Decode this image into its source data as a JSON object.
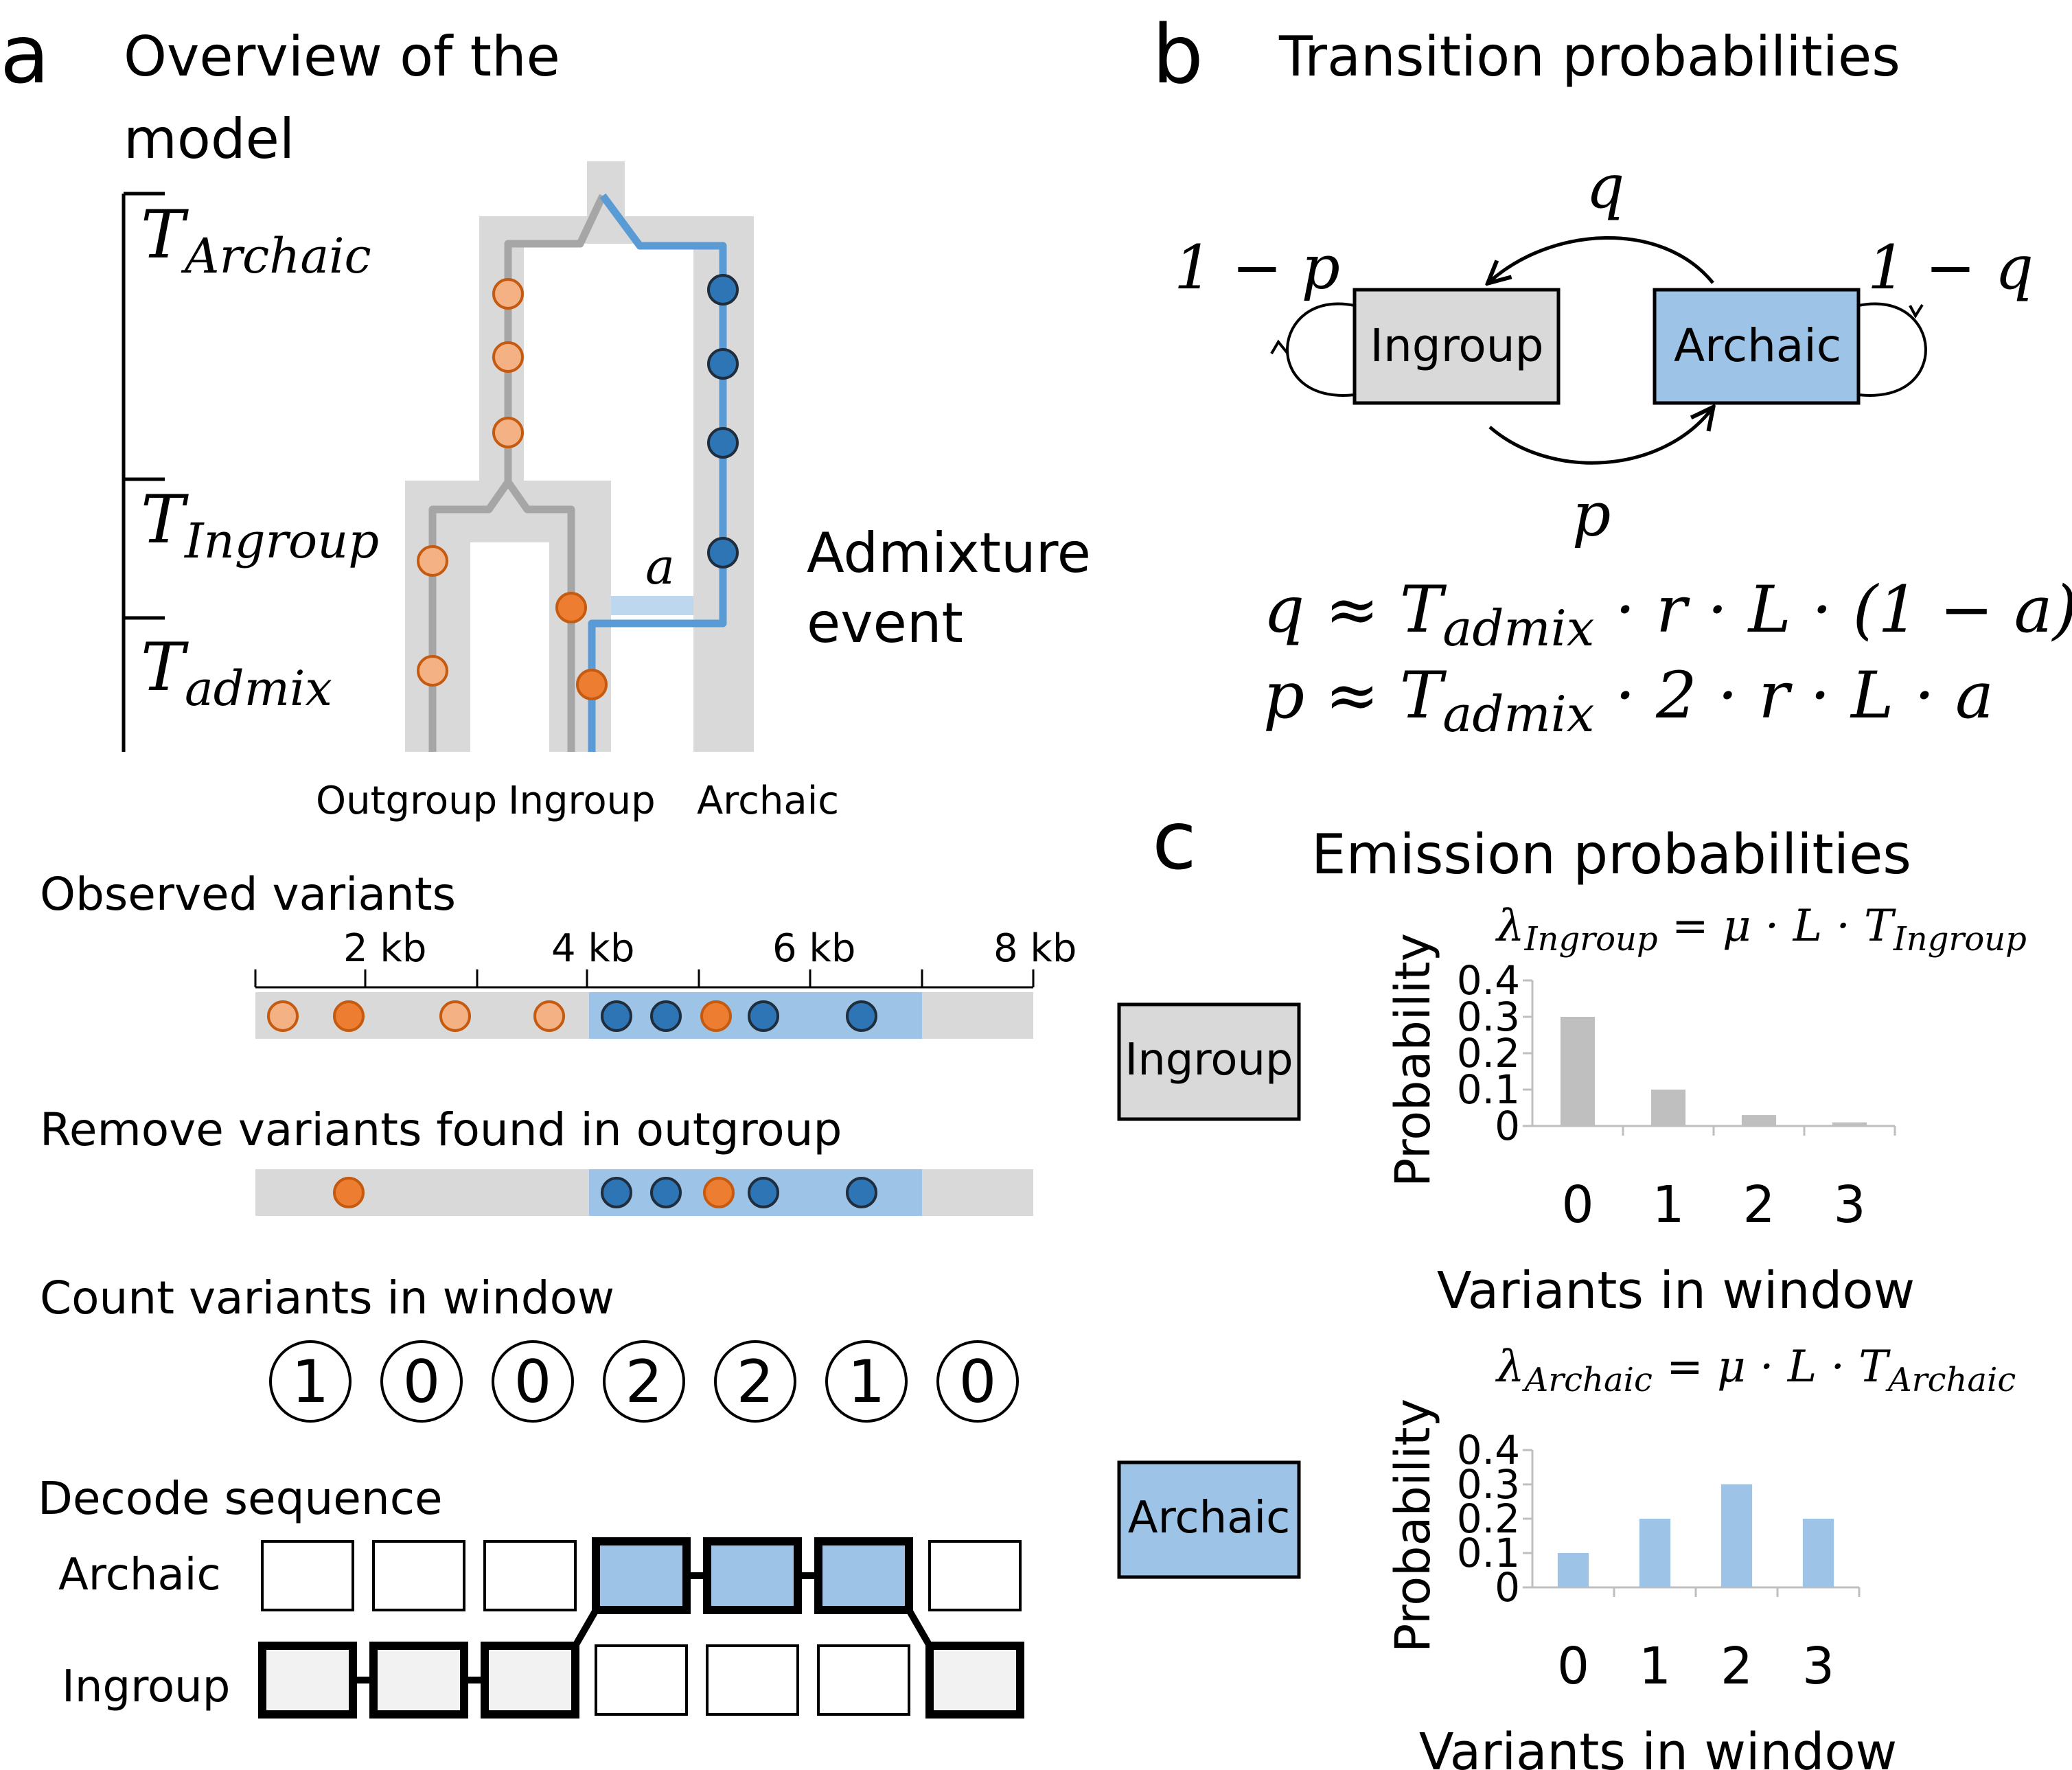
{
  "panel_a": {
    "letter": "a",
    "title_line1": "Overview of the",
    "title_line2": "model",
    "t_archaic_main": "T",
    "t_archaic_sub": "Archaic",
    "t_ingroup_main": "T",
    "t_ingroup_sub": "Ingroup",
    "t_admix_main": "T",
    "t_admix_sub": "admix",
    "a_label": "a",
    "admixture_line1": "Admixture",
    "admixture_line2": "event",
    "pop_outgroup": "Outgroup",
    "pop_ingroup": "Ingroup",
    "pop_archaic": "Archaic",
    "observed_title": "Observed variants",
    "axis_ticks": [
      "2 kb",
      "4 kb",
      "6 kb",
      "8 kb"
    ],
    "remove_title": "Remove variants found in outgroup",
    "count_title": "Count variants in window",
    "window_counts": [
      "1",
      "0",
      "0",
      "2",
      "2",
      "1",
      "0"
    ],
    "decode_title": "Decode sequence",
    "decode_row_archaic": "Archaic",
    "decode_row_ingroup": "Ingroup",
    "decoded_states": [
      "Ingroup",
      "Ingroup",
      "Ingroup",
      "Archaic",
      "Archaic",
      "Archaic",
      "Ingroup"
    ]
  },
  "panel_b": {
    "letter": "b",
    "title": "Transition probabilities",
    "state_ingroup": "Ingroup",
    "state_archaic": "Archaic",
    "q": "q",
    "p": "p",
    "one_minus_p": "1 − p",
    "one_minus_q": "1 − q",
    "eq_q_lhs": "q ≈ T",
    "eq_q_sub": "admix",
    "eq_q_rhs": " · r · L · (1 − a)",
    "eq_p_lhs": "p ≈ T",
    "eq_p_sub": "admix",
    "eq_p_rhs": " · 2 · r · L · a"
  },
  "panel_c": {
    "letter": "c",
    "title": "Emission probabilities",
    "state_ingroup": "Ingroup",
    "state_archaic": "Archaic",
    "lambda_ingroup_lhs": "λ",
    "lambda_ingroup_sub": "Ingroup",
    "lambda_ingroup_mid": " = μ · L · T",
    "lambda_ingroup_sub2": "Ingroup",
    "lambda_archaic_lhs": "λ",
    "lambda_archaic_sub": "Archaic",
    "lambda_archaic_mid": " = μ · L · T",
    "lambda_archaic_sub2": "Archaic",
    "colors": {
      "ingroup_bar": "#bfbfbf",
      "archaic_bar": "#9dc3e6"
    }
  },
  "chart_data": [
    {
      "type": "bar",
      "categories": [
        "0",
        "1",
        "2",
        "3"
      ],
      "values": [
        0.3,
        0.1,
        0.03,
        0.01
      ],
      "xlabel": "Variants in window",
      "ylabel": "Probability",
      "yticks": [
        "0",
        "0.1",
        "0.2",
        "0.3",
        "0.4"
      ],
      "ylim": [
        0,
        0.4
      ]
    },
    {
      "type": "bar",
      "categories": [
        "0",
        "1",
        "2",
        "3"
      ],
      "values": [
        0.1,
        0.2,
        0.3,
        0.2
      ],
      "xlabel": "Variants in window",
      "ylabel": "Probability",
      "yticks": [
        "0",
        "0.1",
        "0.2",
        "0.3",
        "0.4"
      ],
      "ylim": [
        0,
        0.4
      ]
    }
  ]
}
